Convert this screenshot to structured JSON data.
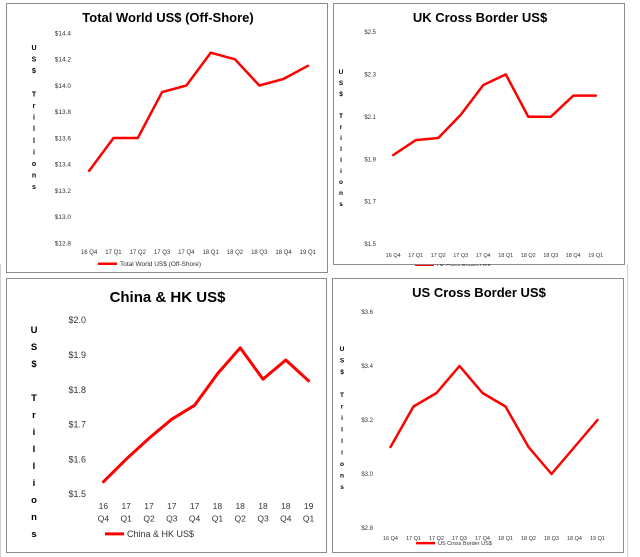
{
  "charts": [
    {
      "title": "Total World US$ (Off-Shore)",
      "ylabel": "US$ Trillions",
      "ylabel_chars": [
        "U",
        "S",
        "$",
        "",
        "T",
        "r",
        "i",
        "l",
        "l",
        "i",
        "o",
        "n",
        "s"
      ],
      "legend": "Total World US$ (Off-Shore)"
    },
    {
      "title": "UK Cross Border US$",
      "ylabel": "US$ Trillions",
      "ylabel_chars": [
        "U",
        "S",
        "$",
        "",
        "T",
        "r",
        "i",
        "l",
        "l",
        "i",
        "o",
        "n",
        "s"
      ],
      "legend": "UK Cross Border US$"
    },
    {
      "title": "China & HK US$",
      "ylabel": "US$ Trillions",
      "ylabel_chars": [
        "U",
        "S",
        "$",
        "",
        "T",
        "r",
        "i",
        "l",
        "l",
        "i",
        "o",
        "n",
        "s"
      ],
      "legend": "China & HK US$"
    },
    {
      "title": "US Cross Border US$",
      "ylabel": "US$ Trillions",
      "ylabel_chars": [
        "U",
        "S",
        "$",
        "",
        "T",
        "r",
        "i",
        "l",
        "l",
        "i",
        "o",
        "n",
        "s"
      ],
      "legend": "US Cross Border US$"
    }
  ],
  "chart_data": [
    {
      "type": "line",
      "title": "Total World US$ (Off-Shore)",
      "categories": [
        "16 Q4",
        "17 Q1",
        "17 Q2",
        "17 Q3",
        "17 Q4",
        "18 Q1",
        "18 Q2",
        "18 Q3",
        "18 Q4",
        "19 Q1"
      ],
      "series": [
        {
          "name": "Total World US$ (Off-Shore)",
          "values": [
            13.35,
            13.6,
            13.6,
            13.95,
            14.0,
            14.25,
            14.2,
            14.0,
            14.05,
            14.15
          ]
        }
      ],
      "yticks": [
        "$12.8",
        "$13.0",
        "$13.2",
        "$13.4",
        "$13.6",
        "$13.8",
        "$14.0",
        "$14.2",
        "$14.4"
      ],
      "ylim": [
        12.8,
        14.4
      ],
      "ylabel": "US$ Trillions",
      "color": "#ff0000"
    },
    {
      "type": "line",
      "title": "UK Cross Border US$",
      "categories": [
        "16 Q4",
        "17 Q1",
        "17 Q2",
        "17 Q3",
        "17 Q4",
        "18 Q1",
        "18 Q2",
        "18 Q3",
        "18 Q4",
        "19 Q1"
      ],
      "series": [
        {
          "name": "UK Cross Border US$",
          "values": [
            1.92,
            1.99,
            2.0,
            2.11,
            2.25,
            2.3,
            2.1,
            2.1,
            2.2,
            2.2
          ]
        }
      ],
      "yticks": [
        "$1.5",
        "$1.7",
        "$1.9",
        "$2.1",
        "$2.3",
        "$2.5"
      ],
      "ylim": [
        1.5,
        2.5
      ],
      "ylabel": "US$ Trillions",
      "color": "#ff0000"
    },
    {
      "type": "line",
      "title": "China & HK US$",
      "categories": [
        "16 Q4",
        "17 Q1",
        "17 Q2",
        "17 Q3",
        "17 Q4",
        "18 Q1",
        "18 Q2",
        "18 Q3",
        "18 Q4",
        "19 Q1"
      ],
      "series": [
        {
          "name": "China & HK US$",
          "values": [
            1.535,
            1.6,
            1.66,
            1.715,
            1.755,
            1.845,
            1.92,
            1.83,
            1.885,
            1.825
          ]
        }
      ],
      "yticks": [
        "$1.5",
        "$1.6",
        "$1.7",
        "$1.8",
        "$1.9",
        "$2.0"
      ],
      "ylim": [
        1.5,
        2.0
      ],
      "ylabel": "US$ Trillions",
      "color": "#ff0000"
    },
    {
      "type": "line",
      "title": "US Cross Border US$",
      "categories": [
        "16 Q4",
        "17 Q1",
        "17 Q2",
        "17 Q3",
        "17 Q4",
        "18 Q1",
        "18 Q2",
        "18 Q3",
        "18 Q4",
        "19 Q1"
      ],
      "series": [
        {
          "name": "US Cross Border US$",
          "values": [
            3.1,
            3.25,
            3.3,
            3.4,
            3.3,
            3.25,
            3.1,
            3.0,
            3.1,
            3.2
          ]
        }
      ],
      "yticks": [
        "$2.8",
        "$3.0",
        "$3.2",
        "$3.4",
        "$3.6"
      ],
      "ylim": [
        2.8,
        3.6
      ],
      "ylabel": "US$ Trillions",
      "color": "#ff0000"
    }
  ]
}
